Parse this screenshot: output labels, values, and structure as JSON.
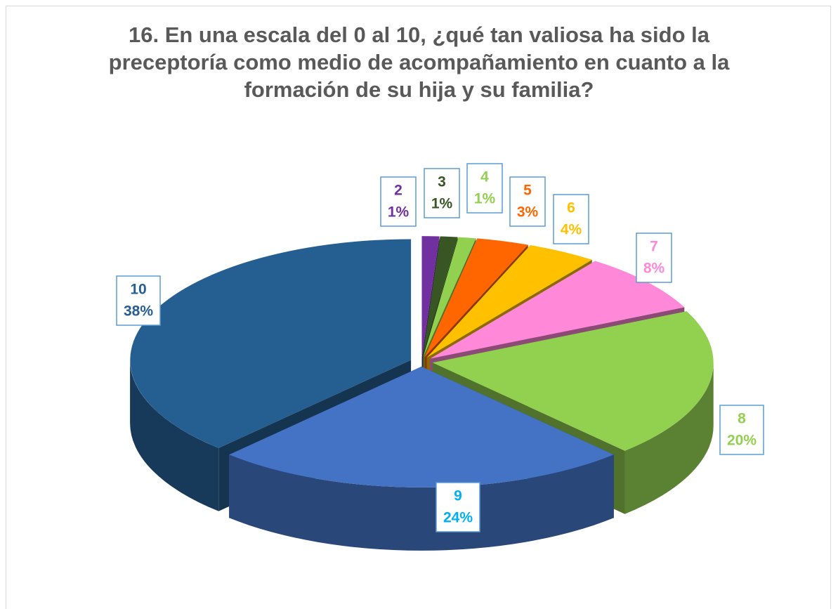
{
  "chart_data": {
    "type": "pie3d",
    "title": "16. En una escala del 0 al 10, ¿qué tan valiosa ha sido la preceptoría como medio de acompañamiento en cuanto a la formación de su hija y su familia?",
    "categories": [
      "2",
      "3",
      "4",
      "5",
      "6",
      "7",
      "8",
      "9",
      "10"
    ],
    "values": [
      1,
      1,
      1,
      3,
      4,
      8,
      20,
      24,
      38
    ],
    "value_labels": [
      "1%",
      "1%",
      "1%",
      "3%",
      "4%",
      "8%",
      "20%",
      "24%",
      "38%"
    ],
    "colors": [
      "#7030a0",
      "#375623",
      "#92d050",
      "#ff6600",
      "#ffc000",
      "#ff88d8",
      "#92d050",
      "#4472c4",
      "#255e91"
    ],
    "label_colors": [
      "#7030a0",
      "#375623",
      "#92d050",
      "#ff6600",
      "#ffc000",
      "#ff88d8",
      "#92d050",
      "#00b0f0",
      "#255e91"
    ]
  }
}
